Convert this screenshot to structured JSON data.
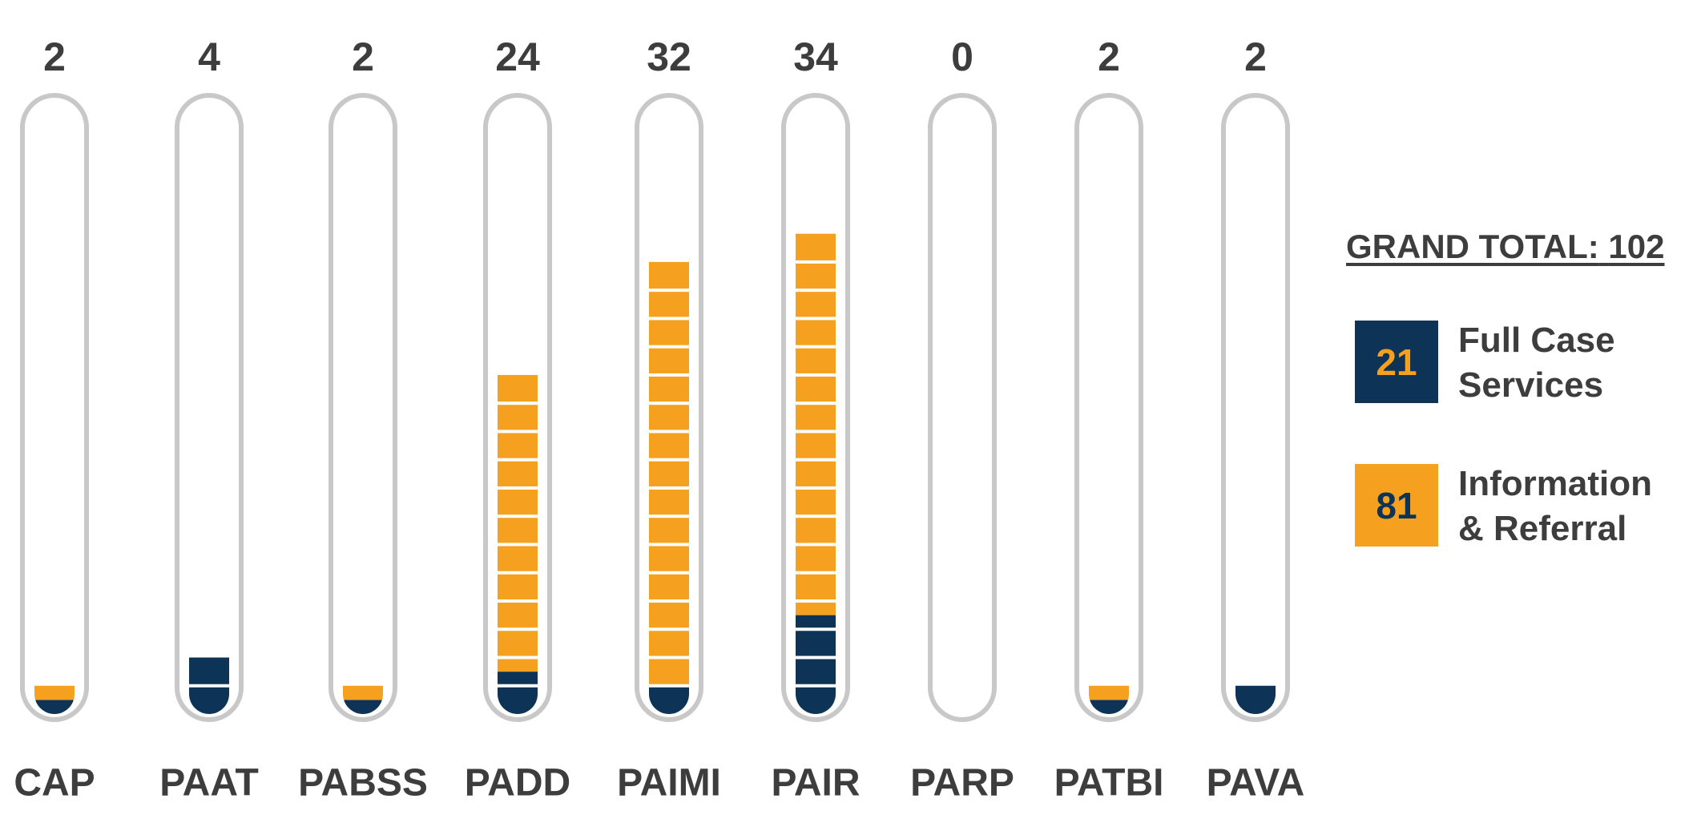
{
  "chart_data": {
    "type": "tube_stacked_bar",
    "categories": [
      "CAP",
      "PAAT",
      "PABSS",
      "PADD",
      "PAIMI",
      "PAIR",
      "PARP",
      "PATBI",
      "PAVA"
    ],
    "totals": [
      2,
      4,
      2,
      24,
      32,
      34,
      0,
      2,
      2
    ],
    "series": [
      {
        "name": "Full Case Services",
        "color": "#0d3457",
        "total": 21,
        "values": [
          1,
          4,
          1,
          3,
          2,
          7,
          0,
          1,
          2
        ]
      },
      {
        "name": "Information & Referral",
        "color": "#f6a01f",
        "total": 81,
        "values": [
          1,
          0,
          1,
          21,
          30,
          27,
          0,
          1,
          0
        ]
      }
    ],
    "ylim": [
      0,
      43
    ],
    "grand_total_label": "GRAND TOTAL:",
    "grand_total": 102
  }
}
